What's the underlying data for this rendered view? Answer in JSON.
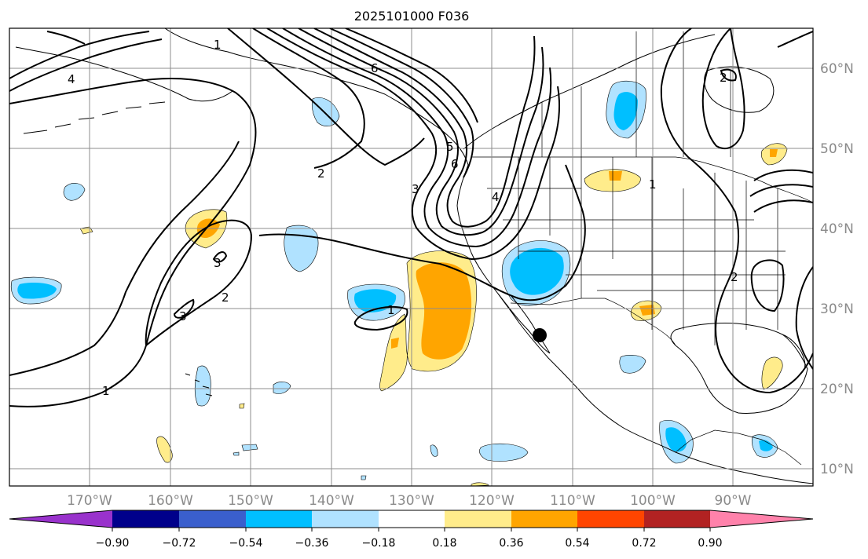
{
  "title": "2025101000 F036",
  "map": {
    "lat_labels": [
      "60°N",
      "50°N",
      "40°N",
      "30°N",
      "20°N",
      "10°N"
    ],
    "lon_labels": [
      "170°W",
      "160°W",
      "150°W",
      "140°W",
      "130°W",
      "120°W",
      "110°W",
      "100°W",
      "90°W"
    ],
    "grid": true,
    "marker": "black-dot"
  },
  "contour_labels": [
    "1",
    "1",
    "1",
    "1",
    "2",
    "2",
    "2",
    "2",
    "3",
    "3",
    "3",
    "4",
    "4",
    "5",
    "6",
    "6"
  ],
  "colorbar": {
    "ticks": [
      "−0.90",
      "−0.72",
      "−0.54",
      "−0.36",
      "−0.18",
      "0.18",
      "0.36",
      "0.54",
      "0.72",
      "0.90"
    ],
    "colors": {
      "below": "#9932cc",
      "c1": "#00008b",
      "c2": "#3a5fcd",
      "c3": "#00bfff",
      "c4": "#b0e2ff",
      "c5": "#ffffff",
      "c6": "#ffec8b",
      "c7": "#ffa500",
      "c8": "#ff4500",
      "c9": "#b22222",
      "above": "#ff82ab"
    }
  }
}
